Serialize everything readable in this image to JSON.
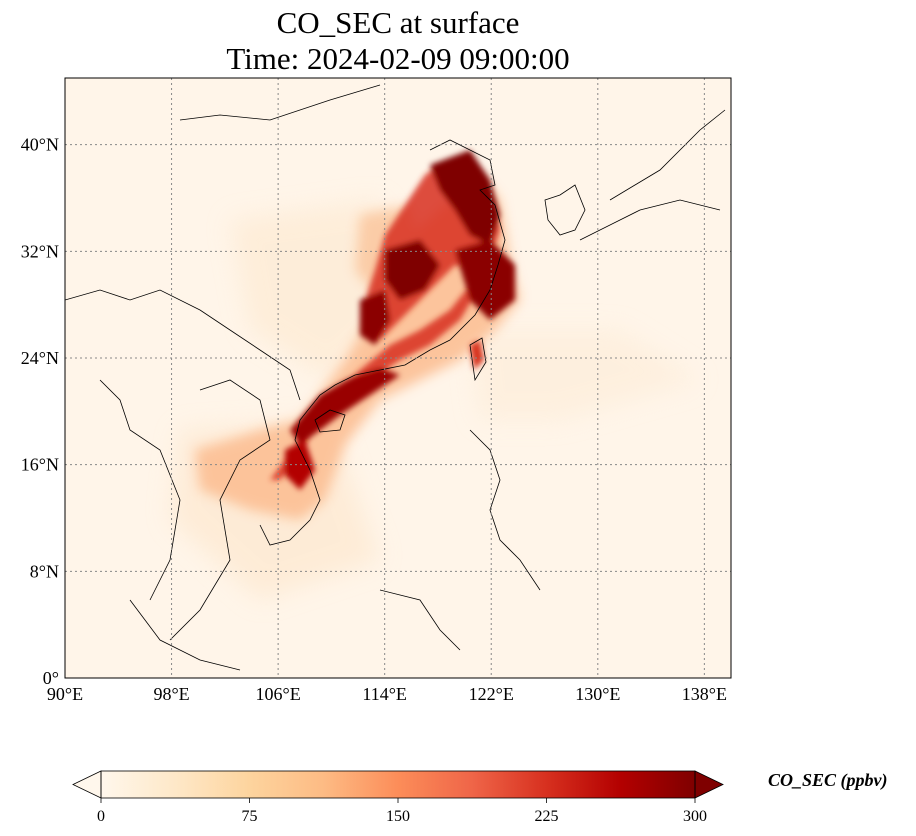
{
  "title": "CO_SEC at surface",
  "subtitle": "Time: 2024-02-09 09:00:00",
  "map": {
    "extent": {
      "lon_min": 90,
      "lon_max": 140,
      "lat_min": 0,
      "lat_max": 45
    },
    "x_ticks": [
      "90°E",
      "98°E",
      "106°E",
      "114°E",
      "122°E",
      "130°E",
      "138°E"
    ],
    "x_tick_values": [
      90,
      98,
      106,
      114,
      122,
      130,
      138
    ],
    "y_ticks": [
      "0°",
      "8°N",
      "16°N",
      "24°N",
      "32°N",
      "40°N"
    ],
    "y_tick_values": [
      0,
      8,
      16,
      24,
      32,
      40
    ],
    "grid": true,
    "grid_style": "dotted",
    "colormap": "OrRd",
    "field_color_low": "#fff5e9",
    "field_color_mid": "#ef6f4a",
    "field_color_high": "#7f0000"
  },
  "colorbar": {
    "label": "CO_SEC (ppbv)",
    "ticks": [
      "0",
      "75",
      "150",
      "225",
      "300"
    ],
    "tick_values": [
      0,
      75,
      150,
      225,
      300
    ],
    "min": 0,
    "max": 300,
    "extend": "both",
    "stops": [
      "#fff7ec",
      "#fee8c8",
      "#fdd49e",
      "#fdbb84",
      "#fc8d59",
      "#ef6548",
      "#d7301f",
      "#b30000",
      "#7f0000"
    ]
  }
}
